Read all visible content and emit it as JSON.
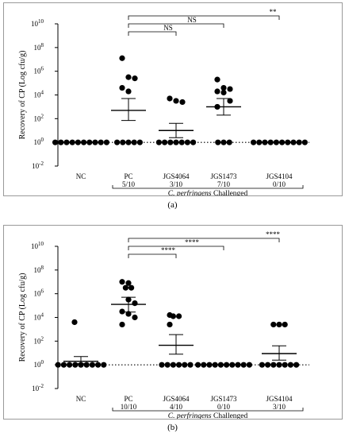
{
  "chart_data": [
    {
      "type": "scatter",
      "panel": "(a)",
      "ylabel": "Recovery of CP (Log cfu/g)",
      "y_scale": "log10",
      "y_ticks": [
        "10^-2",
        "10^0",
        "10^2",
        "10^4",
        "10^6",
        "10^8",
        "10^10"
      ],
      "ylim_exp": [
        -2,
        10
      ],
      "baseline_exp": 0,
      "categories": [
        "NC",
        "PC",
        "JGS4064",
        "JGS1473",
        "JGS4104"
      ],
      "counts": [
        "",
        "5/10",
        "3/10",
        "7/10",
        "0/10"
      ],
      "group_label_italic": "C. perfringens",
      "group_label_rest": " Challenged",
      "mean_exp": [
        0,
        2.7,
        1.0,
        3.0,
        0
      ],
      "sem_upper_exp": [
        0,
        3.7,
        1.6,
        3.7,
        0
      ],
      "sem_lower_exp": [
        0,
        1.85,
        0.4,
        2.3,
        0
      ],
      "points_exp": [
        [
          0,
          0,
          0,
          0,
          0,
          0,
          0,
          0,
          0,
          0
        ],
        [
          7.1,
          5.5,
          5.4,
          4.6,
          4.3,
          0,
          0,
          0,
          0,
          0
        ],
        [
          3.7,
          3.5,
          3.4,
          0,
          0,
          0,
          0,
          0,
          0,
          0
        ],
        [
          5.3,
          4.6,
          4.5,
          4.3,
          4.2,
          3.5,
          3.0,
          0,
          0,
          0
        ],
        [
          0,
          0,
          0,
          0,
          0,
          0,
          0,
          0,
          0,
          0
        ]
      ],
      "comparisons": [
        {
          "from": 1,
          "to": 2,
          "label": "NS"
        },
        {
          "from": 1,
          "to": 3,
          "label": "NS"
        },
        {
          "from": 1,
          "to": 4,
          "label": "**"
        }
      ]
    },
    {
      "type": "scatter",
      "panel": "(b)",
      "ylabel": "Recovery of CP (Log cfu/g)",
      "y_scale": "log10",
      "y_ticks": [
        "10^-2",
        "10^0",
        "10^2",
        "10^4",
        "10^6",
        "10^8",
        "10^10"
      ],
      "ylim_exp": [
        -2,
        10
      ],
      "baseline_exp": 0,
      "categories": [
        "NC",
        "PC",
        "JGS4064",
        "JGS1473",
        "JGS4104"
      ],
      "counts": [
        "",
        "10/10",
        "4/10",
        "0/10",
        "3/10"
      ],
      "group_label_italic": "C. perfringens",
      "group_label_rest": " Challenged",
      "mean_exp": [
        0.3,
        5.1,
        1.65,
        0,
        0.95
      ],
      "sem_upper_exp": [
        0.7,
        5.7,
        2.55,
        0,
        1.6
      ],
      "sem_lower_exp": [
        0.1,
        4.45,
        0.9,
        0,
        0.4
      ],
      "points_exp": [
        [
          3.6,
          0,
          0,
          0,
          0,
          0,
          0,
          0,
          0,
          0
        ],
        [
          7.0,
          6.9,
          6.5,
          6.5,
          5.5,
          5.2,
          4.5,
          4.3,
          4.0,
          3.4
        ],
        [
          4.2,
          4.1,
          4.1,
          3.4,
          0,
          0,
          0,
          0,
          0,
          0
        ],
        [
          0,
          0,
          0,
          0,
          0,
          0,
          0,
          0,
          0,
          0
        ],
        [
          3.4,
          3.4,
          3.4,
          0,
          0,
          0,
          0,
          0,
          0,
          0
        ]
      ],
      "comparisons": [
        {
          "from": 1,
          "to": 2,
          "label": "****"
        },
        {
          "from": 1,
          "to": 3,
          "label": "****"
        },
        {
          "from": 1,
          "to": 4,
          "label": "****"
        }
      ]
    }
  ],
  "captions": [
    "(a)",
    "(b)"
  ]
}
